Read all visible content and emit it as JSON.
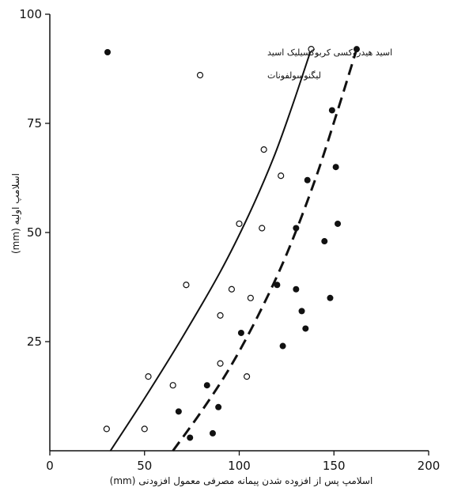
{
  "chart_data": {
    "type": "scatter",
    "xlabel": "اسلامپ پس از افزوده شدن پیمانه مصرفی معمول افزودنی (mm)",
    "ylabel": "اسلامپ اولیه (mm)",
    "xlim": [
      0,
      200
    ],
    "ylim": [
      0,
      100
    ],
    "x_ticks": [
      "0",
      "50",
      "100",
      "150",
      "200"
    ],
    "y_ticks": [
      "25",
      "50",
      "75",
      "100"
    ],
    "grid": false,
    "legend_position": "top-right",
    "series": [
      {
        "name": "اسید هیدروکسی کربوکسیلیک اسید",
        "marker": "filled-circle",
        "fit_line": "dashed",
        "color": "#111111",
        "points": [
          [
            68,
            9
          ],
          [
            74,
            3
          ],
          [
            83,
            15
          ],
          [
            86,
            4
          ],
          [
            89,
            10
          ],
          [
            101,
            27
          ],
          [
            120,
            38
          ],
          [
            123,
            24
          ],
          [
            130,
            51
          ],
          [
            130,
            37
          ],
          [
            133,
            32
          ],
          [
            135,
            28
          ],
          [
            136,
            62
          ],
          [
            145,
            48
          ],
          [
            148,
            35
          ],
          [
            149,
            78
          ],
          [
            151,
            65
          ],
          [
            152,
            52
          ],
          [
            162,
            92
          ]
        ],
        "fit": [
          [
            65,
            0
          ],
          [
            80,
            9
          ],
          [
            95,
            19
          ],
          [
            110,
            31
          ],
          [
            125,
            45
          ],
          [
            140,
            62
          ],
          [
            152,
            78
          ],
          [
            162,
            92
          ]
        ]
      },
      {
        "name": "لیگنوسولفونات",
        "marker": "open-circle",
        "fit_line": "solid",
        "color": "#111111",
        "points": [
          [
            30,
            5
          ],
          [
            50,
            5
          ],
          [
            52,
            17
          ],
          [
            65,
            15
          ],
          [
            72,
            38
          ],
          [
            90,
            31
          ],
          [
            90,
            20
          ],
          [
            96,
            37
          ],
          [
            100,
            52
          ],
          [
            104,
            17
          ],
          [
            106,
            35
          ],
          [
            112,
            51
          ],
          [
            113,
            69
          ],
          [
            122,
            63
          ],
          [
            138,
            92
          ]
        ],
        "fit": [
          [
            32,
            0
          ],
          [
            50,
            12
          ],
          [
            70,
            26
          ],
          [
            90,
            41
          ],
          [
            105,
            54
          ],
          [
            118,
            67
          ],
          [
            128,
            79
          ],
          [
            138,
            92
          ]
        ]
      }
    ]
  }
}
